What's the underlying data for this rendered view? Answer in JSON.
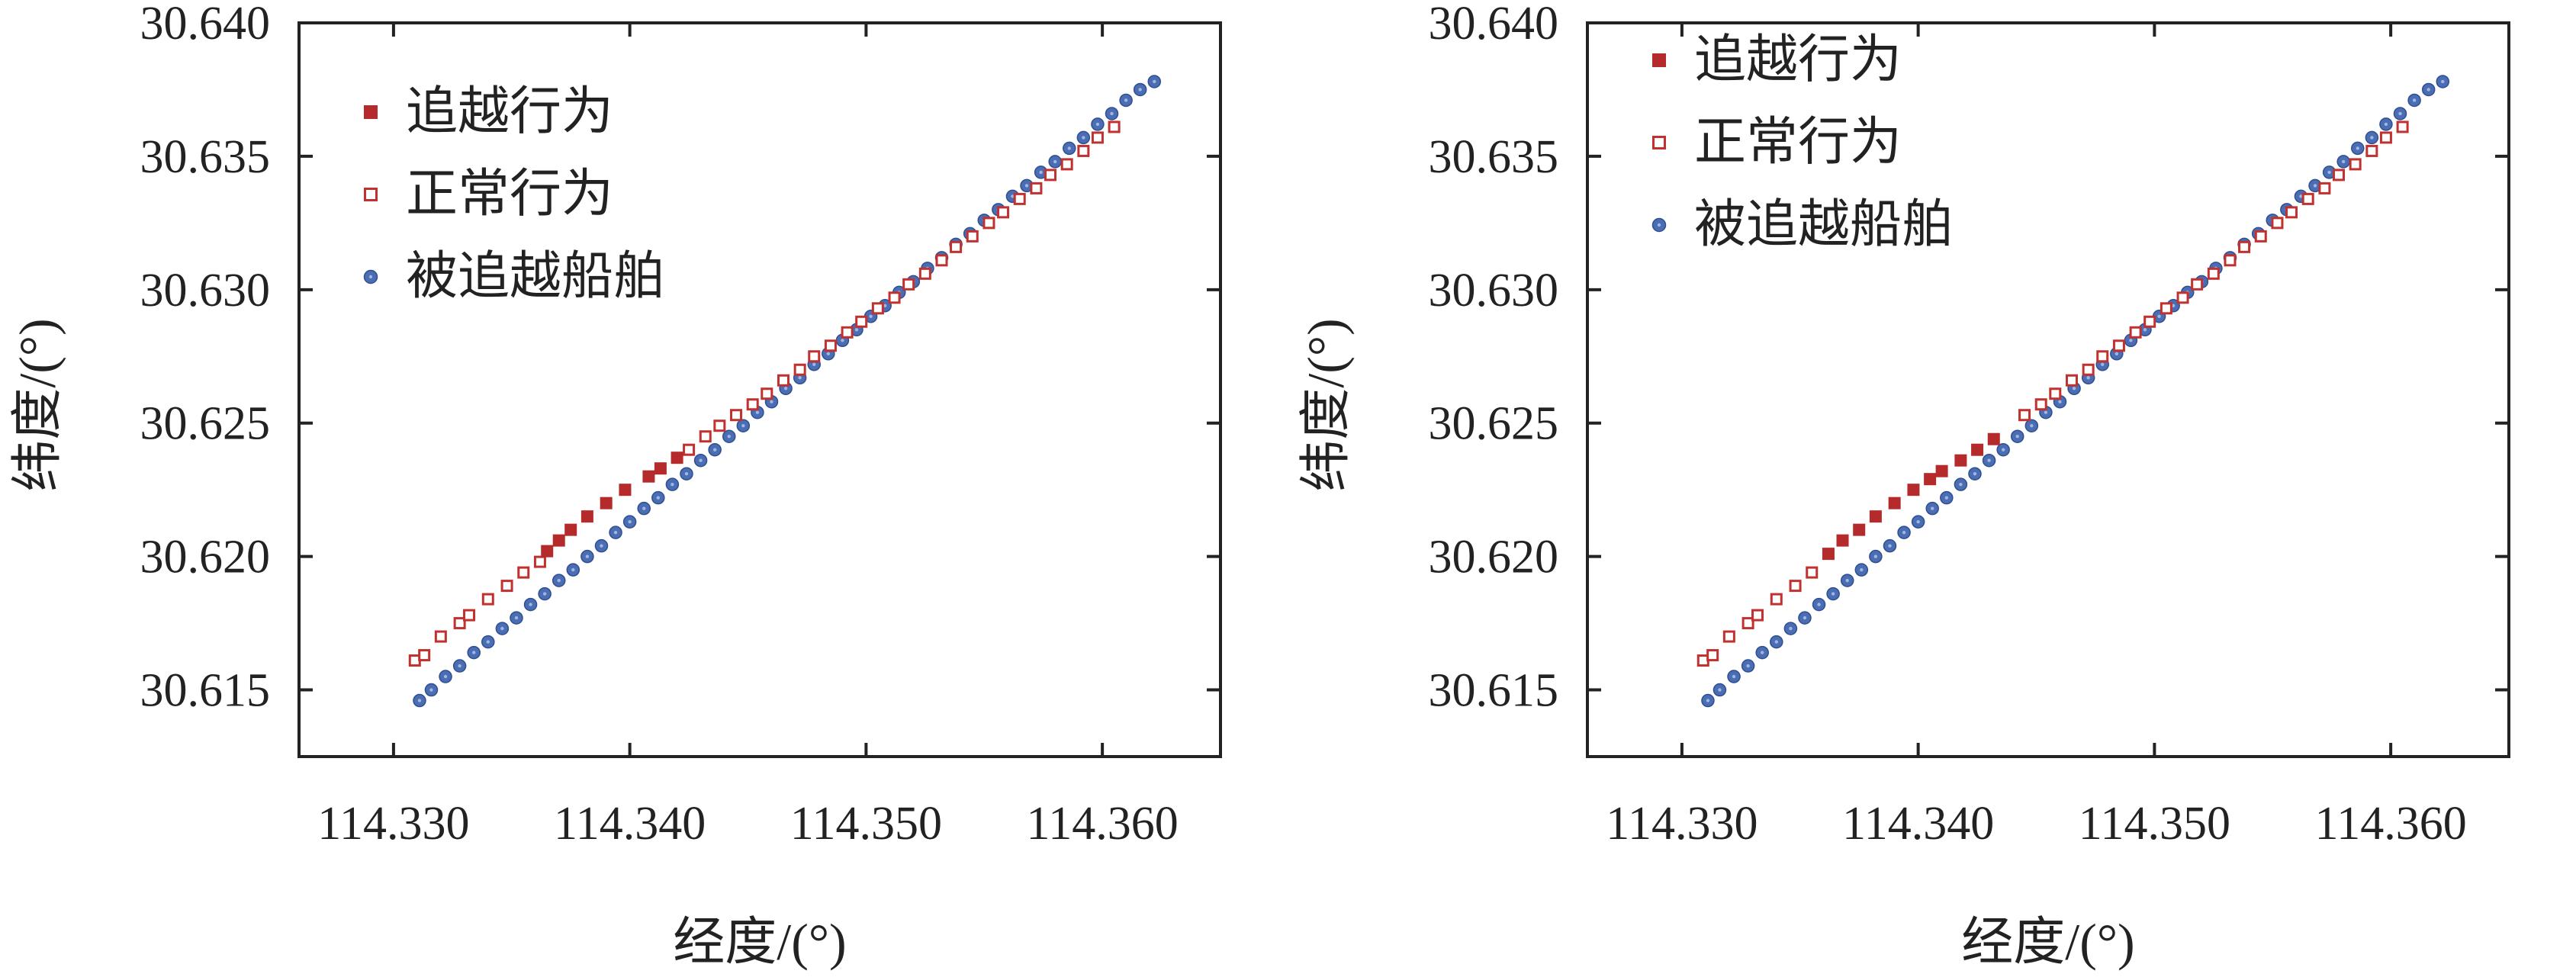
{
  "colors": {
    "overtake": "#b52a2a",
    "normal": "#c0312f",
    "overtaken": "#4a6db3",
    "axis": "#222222"
  },
  "chart_data": [
    {
      "type": "scatter",
      "xlabel": "经度/(°)",
      "ylabel": "纬度/(°)",
      "xlim": [
        114.326,
        114.365
      ],
      "ylim": [
        30.6125,
        30.64
      ],
      "xticks": [
        "114.330",
        "114.340",
        "114.350",
        "114.360"
      ],
      "xtick_values": [
        114.33,
        114.34,
        114.35,
        114.36
      ],
      "yticks": [
        "30.615",
        "30.620",
        "30.625",
        "30.630",
        "30.635",
        "30.640"
      ],
      "ytick_values": [
        30.615,
        30.62,
        30.625,
        30.63,
        30.635,
        30.64
      ],
      "legend_position": "top-left",
      "series": [
        {
          "name": "追越行为",
          "marker": "filled-square",
          "x": [
            114.3365,
            114.337,
            114.3375,
            114.3382,
            114.339,
            114.3398,
            114.3408,
            114.3413,
            114.342
          ],
          "y": [
            30.6202,
            30.6206,
            30.621,
            30.6215,
            30.622,
            30.6225,
            30.623,
            30.6233,
            30.6237
          ]
        },
        {
          "name": "正常行为",
          "marker": "open-square",
          "x": [
            114.3309,
            114.3313,
            114.332,
            114.3328,
            114.3332,
            114.334,
            114.3348,
            114.3355,
            114.3362,
            114.3425,
            114.3432,
            114.3438,
            114.3445,
            114.3452,
            114.3458,
            114.3465,
            114.3472,
            114.3478,
            114.3485,
            114.3492,
            114.3498,
            114.3505,
            114.3512,
            114.3518,
            114.3525,
            114.3532,
            114.3538,
            114.3545,
            114.3552,
            114.3558,
            114.3565,
            114.3572,
            114.3578,
            114.3585,
            114.3592,
            114.3598,
            114.3605
          ],
          "y": [
            30.6161,
            30.6163,
            30.617,
            30.6175,
            30.6178,
            30.6184,
            30.6189,
            30.6194,
            30.6198,
            30.624,
            30.6245,
            30.6249,
            30.6253,
            30.6257,
            30.6261,
            30.6266,
            30.627,
            30.6275,
            30.6279,
            30.6284,
            30.6288,
            30.6293,
            30.6297,
            30.6302,
            30.6306,
            30.6311,
            30.6316,
            30.632,
            30.6325,
            30.6329,
            30.6334,
            30.6338,
            30.6343,
            30.6347,
            30.6352,
            30.6357,
            30.6361
          ]
        },
        {
          "name": "被追越船舶",
          "marker": "dot",
          "x": [
            114.3311,
            114.3316,
            114.3322,
            114.3328,
            114.3334,
            114.334,
            114.3346,
            114.3352,
            114.3358,
            114.3364,
            114.337,
            114.3376,
            114.3382,
            114.3388,
            114.3394,
            114.34,
            114.3406,
            114.3412,
            114.3418,
            114.3424,
            114.343,
            114.3436,
            114.3442,
            114.3448,
            114.3454,
            114.346,
            114.3466,
            114.3472,
            114.3478,
            114.3484,
            114.349,
            114.3496,
            114.3502,
            114.3508,
            114.3514,
            114.352,
            114.3526,
            114.3532,
            114.3538,
            114.3544,
            114.355,
            114.3556,
            114.3562,
            114.3568,
            114.3574,
            114.358,
            114.3586,
            114.3592,
            114.3598,
            114.3604,
            114.361,
            114.3616,
            114.3622
          ],
          "y": [
            30.6146,
            30.615,
            30.6155,
            30.6159,
            30.6164,
            30.6168,
            30.6173,
            30.6177,
            30.6182,
            30.6186,
            30.6191,
            30.6195,
            30.62,
            30.6204,
            30.6209,
            30.6213,
            30.6218,
            30.6222,
            30.6227,
            30.6231,
            30.6236,
            30.624,
            30.6245,
            30.6249,
            30.6254,
            30.6258,
            30.6263,
            30.6267,
            30.6272,
            30.6276,
            30.6281,
            30.6285,
            30.629,
            30.6294,
            30.6299,
            30.6303,
            30.6308,
            30.6312,
            30.6317,
            30.6321,
            30.6326,
            30.633,
            30.6335,
            30.6339,
            30.6344,
            30.6348,
            30.6353,
            30.6357,
            30.6362,
            30.6366,
            30.6371,
            30.6375,
            30.6378
          ]
        }
      ]
    },
    {
      "type": "scatter",
      "xlabel": "经度/(°)",
      "ylabel": "纬度/(°)",
      "xlim": [
        114.326,
        114.365
      ],
      "ylim": [
        30.6125,
        30.64
      ],
      "xticks": [
        "114.330",
        "114.340",
        "114.350",
        "114.360"
      ],
      "xtick_values": [
        114.33,
        114.34,
        114.35,
        114.36
      ],
      "yticks": [
        "30.615",
        "30.620",
        "30.625",
        "30.630",
        "30.635",
        "30.640"
      ],
      "ytick_values": [
        30.615,
        30.62,
        30.625,
        30.63,
        30.635,
        30.64
      ],
      "legend_position": "top-left",
      "series": [
        {
          "name": "追越行为",
          "marker": "filled-square",
          "x": [
            114.3362,
            114.3368,
            114.3375,
            114.3382,
            114.339,
            114.3398,
            114.3405,
            114.341,
            114.3418,
            114.3425,
            114.3432
          ],
          "y": [
            30.6201,
            30.6206,
            30.621,
            30.6215,
            30.622,
            30.6225,
            30.6229,
            30.6232,
            30.6236,
            30.624,
            30.6244
          ]
        },
        {
          "name": "正常行为",
          "marker": "open-square",
          "x": [
            114.3309,
            114.3313,
            114.332,
            114.3328,
            114.3332,
            114.334,
            114.3348,
            114.3355,
            114.3445,
            114.3452,
            114.3458,
            114.3465,
            114.3472,
            114.3478,
            114.3485,
            114.3492,
            114.3498,
            114.3505,
            114.3512,
            114.3518,
            114.3525,
            114.3532,
            114.3538,
            114.3545,
            114.3552,
            114.3558,
            114.3565,
            114.3572,
            114.3578,
            114.3585,
            114.3592,
            114.3598,
            114.3605
          ],
          "y": [
            30.6161,
            30.6163,
            30.617,
            30.6175,
            30.6178,
            30.6184,
            30.6189,
            30.6194,
            30.6253,
            30.6257,
            30.6261,
            30.6266,
            30.627,
            30.6275,
            30.6279,
            30.6284,
            30.6288,
            30.6293,
            30.6297,
            30.6302,
            30.6306,
            30.6311,
            30.6316,
            30.632,
            30.6325,
            30.6329,
            30.6334,
            30.6338,
            30.6343,
            30.6347,
            30.6352,
            30.6357,
            30.6361
          ]
        },
        {
          "name": "被追越船舶",
          "marker": "dot",
          "x": [
            114.3311,
            114.3316,
            114.3322,
            114.3328,
            114.3334,
            114.334,
            114.3346,
            114.3352,
            114.3358,
            114.3364,
            114.337,
            114.3376,
            114.3382,
            114.3388,
            114.3394,
            114.34,
            114.3406,
            114.3412,
            114.3418,
            114.3424,
            114.343,
            114.3436,
            114.3442,
            114.3448,
            114.3454,
            114.346,
            114.3466,
            114.3472,
            114.3478,
            114.3484,
            114.349,
            114.3496,
            114.3502,
            114.3508,
            114.3514,
            114.352,
            114.3526,
            114.3532,
            114.3538,
            114.3544,
            114.355,
            114.3556,
            114.3562,
            114.3568,
            114.3574,
            114.358,
            114.3586,
            114.3592,
            114.3598,
            114.3604,
            114.361,
            114.3616,
            114.3622
          ],
          "y": [
            30.6146,
            30.615,
            30.6155,
            30.6159,
            30.6164,
            30.6168,
            30.6173,
            30.6177,
            30.6182,
            30.6186,
            30.6191,
            30.6195,
            30.62,
            30.6204,
            30.6209,
            30.6213,
            30.6218,
            30.6222,
            30.6227,
            30.6231,
            30.6236,
            30.624,
            30.6245,
            30.6249,
            30.6254,
            30.6258,
            30.6263,
            30.6267,
            30.6272,
            30.6276,
            30.6281,
            30.6285,
            30.629,
            30.6294,
            30.6299,
            30.6303,
            30.6308,
            30.6312,
            30.6317,
            30.6321,
            30.6326,
            30.633,
            30.6335,
            30.6339,
            30.6344,
            30.6348,
            30.6353,
            30.6357,
            30.6362,
            30.6366,
            30.6371,
            30.6375,
            30.6378
          ]
        }
      ]
    }
  ]
}
